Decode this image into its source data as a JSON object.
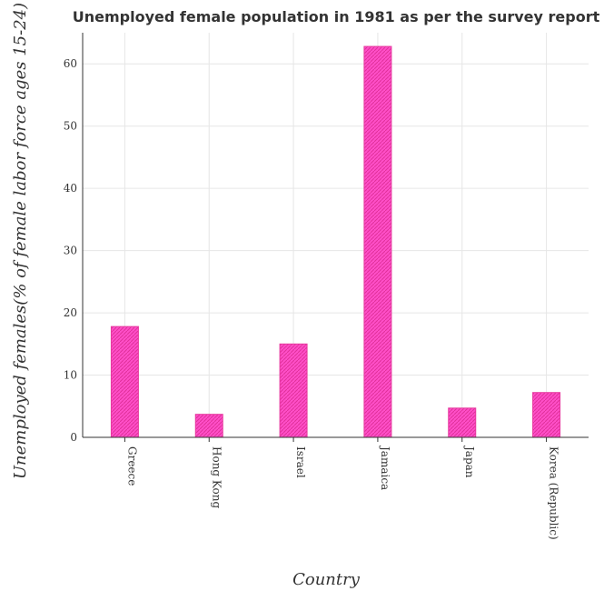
{
  "colors": {
    "bar": "#ff4fc8",
    "bar_stroke": "#e6399e",
    "grid": "#e6e6e6",
    "text": "#333333"
  },
  "chart_data": {
    "type": "bar",
    "title": "Unemployed female population in 1981 as per the survey report",
    "xlabel": "Country",
    "ylabel": "Unemployed females(% of female labor force ages 15-24)",
    "categories": [
      "Greece",
      "Hong Kong",
      "Israel",
      "Jamaica",
      "Japan",
      "Korea (Republic)"
    ],
    "values": [
      17.8,
      3.7,
      15.0,
      62.8,
      4.7,
      7.2
    ],
    "ylim": [
      0,
      65
    ],
    "yticks": [
      "0",
      "10",
      "20",
      "30",
      "40",
      "50",
      "60"
    ],
    "grid": true,
    "legend": "none"
  }
}
